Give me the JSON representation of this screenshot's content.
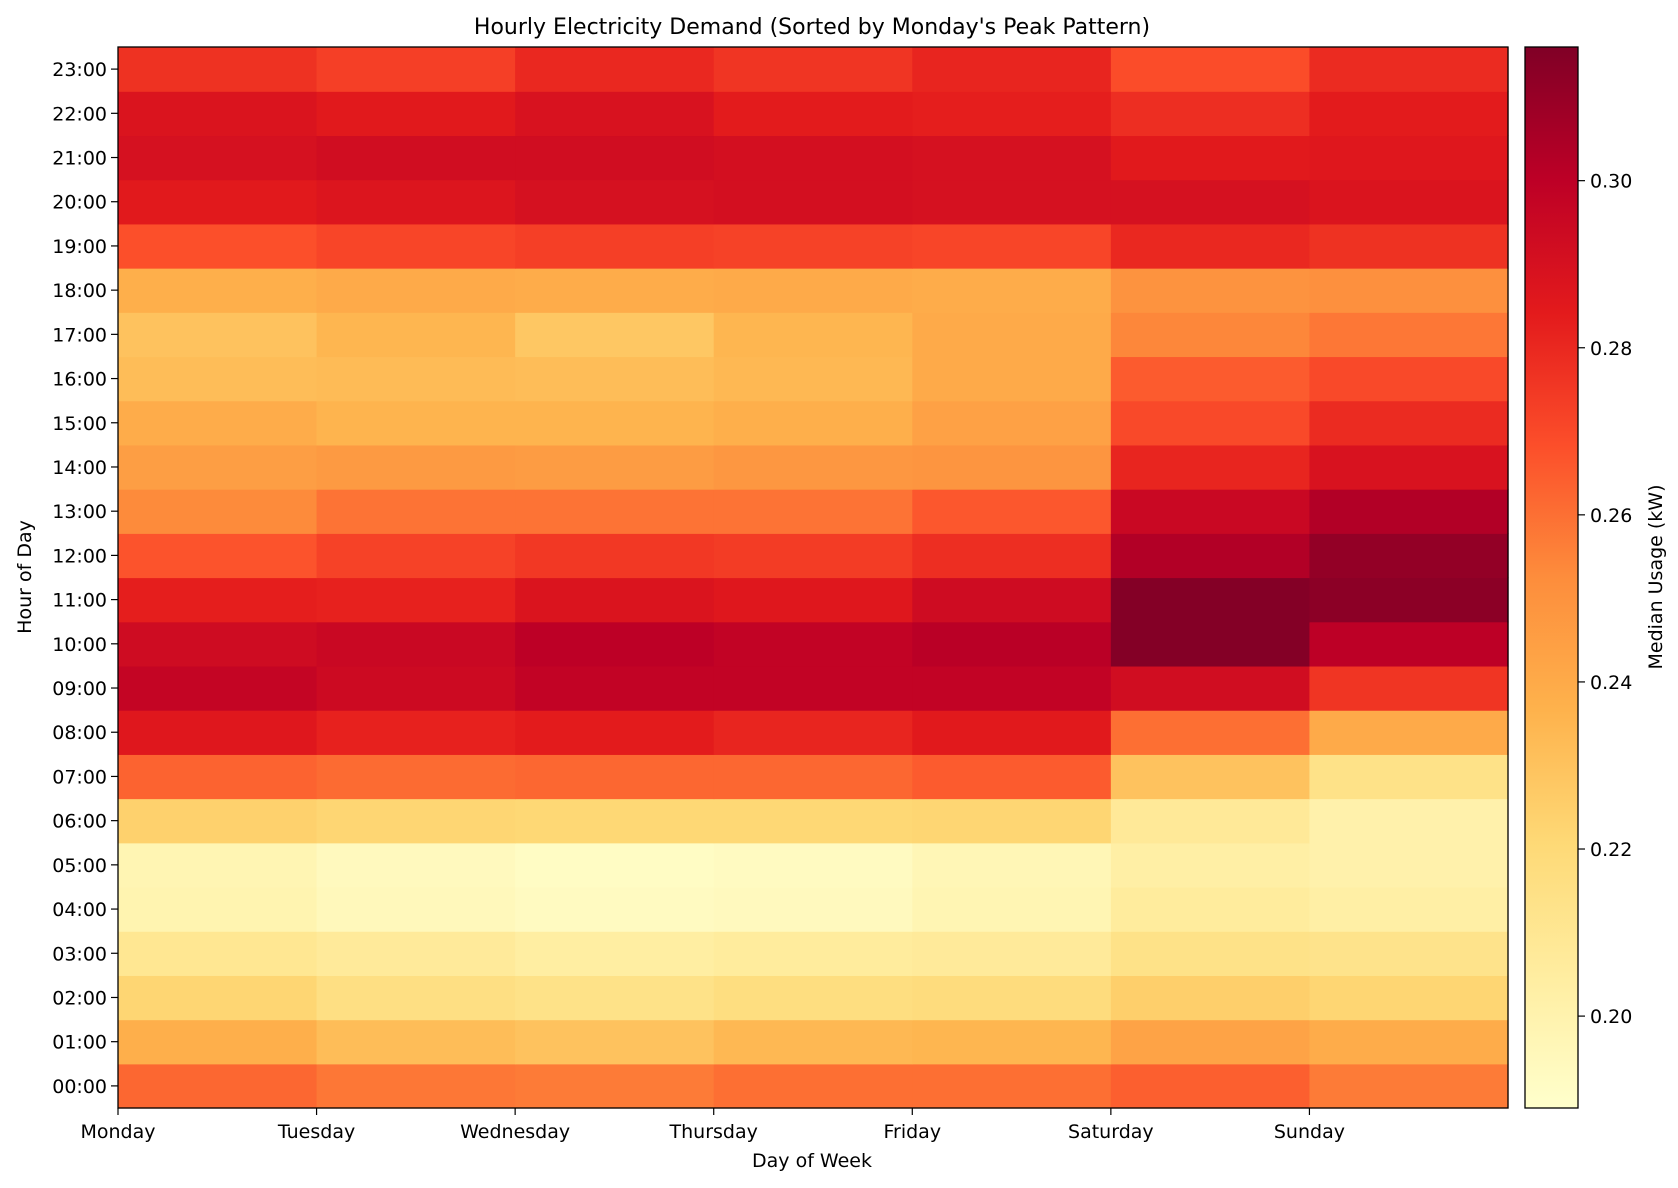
{
  "chart_data": {
    "type": "heatmap",
    "title": "Hourly Electricity Demand (Sorted by Monday's Peak Pattern)",
    "xlabel": "Day of Week",
    "ylabel": "Hour of Day",
    "x_categories": [
      "Monday",
      "Tuesday",
      "Wednesday",
      "Thursday",
      "Friday",
      "Saturday",
      "Sunday"
    ],
    "y_categories": [
      "00:00",
      "01:00",
      "02:00",
      "03:00",
      "04:00",
      "05:00",
      "06:00",
      "07:00",
      "08:00",
      "09:00",
      "10:00",
      "11:00",
      "12:00",
      "13:00",
      "14:00",
      "15:00",
      "16:00",
      "17:00",
      "18:00",
      "19:00",
      "20:00",
      "21:00",
      "22:00",
      "23:00"
    ],
    "values": [
      [
        0.262,
        0.258,
        0.257,
        0.26,
        0.26,
        0.264,
        0.257
      ],
      [
        0.238,
        0.232,
        0.23,
        0.234,
        0.235,
        0.243,
        0.239
      ],
      [
        0.222,
        0.216,
        0.214,
        0.217,
        0.218,
        0.225,
        0.222
      ],
      [
        0.21,
        0.207,
        0.204,
        0.206,
        0.207,
        0.214,
        0.213
      ],
      [
        0.199,
        0.195,
        0.193,
        0.194,
        0.198,
        0.206,
        0.203
      ],
      [
        0.198,
        0.194,
        0.192,
        0.193,
        0.197,
        0.203,
        0.201
      ],
      [
        0.224,
        0.222,
        0.221,
        0.221,
        0.222,
        0.208,
        0.201
      ],
      [
        0.263,
        0.261,
        0.262,
        0.262,
        0.265,
        0.23,
        0.214
      ],
      [
        0.286,
        0.282,
        0.284,
        0.281,
        0.285,
        0.26,
        0.24
      ],
      [
        0.297,
        0.294,
        0.298,
        0.298,
        0.298,
        0.292,
        0.276
      ],
      [
        0.293,
        0.295,
        0.3,
        0.298,
        0.301,
        0.315,
        0.3
      ],
      [
        0.283,
        0.282,
        0.288,
        0.286,
        0.293,
        0.315,
        0.313
      ],
      [
        0.267,
        0.272,
        0.275,
        0.274,
        0.278,
        0.303,
        0.311
      ],
      [
        0.253,
        0.259,
        0.259,
        0.259,
        0.266,
        0.295,
        0.303
      ],
      [
        0.245,
        0.247,
        0.246,
        0.248,
        0.249,
        0.281,
        0.289
      ],
      [
        0.239,
        0.236,
        0.236,
        0.238,
        0.244,
        0.27,
        0.279
      ],
      [
        0.232,
        0.233,
        0.232,
        0.234,
        0.24,
        0.265,
        0.27
      ],
      [
        0.23,
        0.235,
        0.228,
        0.235,
        0.24,
        0.254,
        0.258
      ],
      [
        0.238,
        0.24,
        0.239,
        0.24,
        0.239,
        0.25,
        0.251
      ],
      [
        0.268,
        0.271,
        0.273,
        0.272,
        0.271,
        0.28,
        0.277
      ],
      [
        0.285,
        0.287,
        0.29,
        0.291,
        0.29,
        0.29,
        0.288
      ],
      [
        0.29,
        0.292,
        0.292,
        0.291,
        0.29,
        0.285,
        0.286
      ],
      [
        0.288,
        0.285,
        0.289,
        0.284,
        0.283,
        0.278,
        0.284
      ],
      [
        0.277,
        0.273,
        0.28,
        0.276,
        0.281,
        0.269,
        0.279
      ]
    ],
    "colorbar": {
      "label": "Median Usage (kW)",
      "min": 0.189,
      "max": 0.316,
      "ticks": [
        0.2,
        0.22,
        0.24,
        0.26,
        0.28,
        0.3
      ],
      "tick_labels": [
        "0.20",
        "0.22",
        "0.24",
        "0.26",
        "0.28",
        "0.30"
      ],
      "colormap": "YlOrRd",
      "colormap_stops": [
        "#ffffcc",
        "#ffeda0",
        "#fed976",
        "#feb24c",
        "#fd8d3c",
        "#fc4e2a",
        "#e31a1c",
        "#bd0026",
        "#800026"
      ]
    }
  }
}
